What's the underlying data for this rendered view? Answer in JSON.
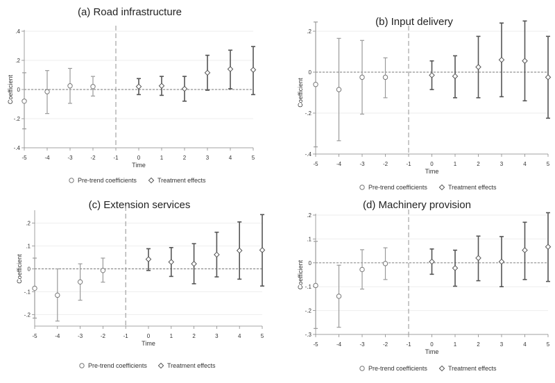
{
  "chart_data": [
    {
      "type": "scatter",
      "title": "(a) Road infrastructure",
      "xlabel": "Time",
      "ylabel": "Coefficient",
      "xlim": [
        -5,
        5
      ],
      "ylim": [
        -0.4,
        0.4
      ],
      "x_ticks": [
        "-5",
        "-4",
        "-3",
        "-2",
        "-1",
        "0",
        "1",
        "2",
        "3",
        "4",
        "5"
      ],
      "y_ticks": [
        -0.4,
        -0.2,
        0,
        0.2,
        0.4
      ],
      "y_tick_labels": [
        "-.4",
        "-.2",
        "0",
        ".2",
        ".4"
      ],
      "event_line_x": -1,
      "zero_line": true,
      "legend_position": "bottom",
      "series": [
        {
          "name": "Pre-trend coefficients",
          "marker": "circle",
          "color": "#9a9a9a",
          "x": [
            -5,
            -4,
            -3,
            -2
          ],
          "y": [
            -0.08,
            -0.015,
            0.025,
            0.02
          ],
          "ci_low": [
            -0.27,
            -0.165,
            -0.095,
            -0.045
          ],
          "ci_high": [
            0.115,
            0.13,
            0.145,
            0.09
          ]
        },
        {
          "name": "Treatment effects",
          "marker": "diamond",
          "color": "#555555",
          "x": [
            0,
            1,
            2,
            3,
            4,
            5
          ],
          "y": [
            0.02,
            0.025,
            0.005,
            0.115,
            0.14,
            0.135
          ],
          "ci_low": [
            -0.035,
            -0.04,
            -0.08,
            -0.005,
            0.005,
            -0.035
          ],
          "ci_high": [
            0.075,
            0.09,
            0.09,
            0.235,
            0.27,
            0.295
          ]
        }
      ]
    },
    {
      "type": "scatter",
      "title": "(b) Input delivery",
      "xlabel": "Time",
      "ylabel": "Coefficient",
      "xlim": [
        -5,
        5
      ],
      "ylim": [
        -0.4,
        0.2
      ],
      "x_ticks": [
        "-5",
        "-4",
        "-3",
        "-2",
        "-1",
        "0",
        "1",
        "2",
        "3",
        "4",
        "5"
      ],
      "y_ticks": [
        -0.4,
        -0.2,
        0,
        0.2
      ],
      "y_tick_labels": [
        "-.4",
        "-.2",
        "0",
        ".2"
      ],
      "event_line_x": -1,
      "zero_line": true,
      "legend_position": "bottom",
      "series": [
        {
          "name": "Pre-trend coefficients",
          "marker": "circle",
          "color": "#9a9a9a",
          "x": [
            -5,
            -4,
            -3,
            -2
          ],
          "y": [
            -0.06,
            -0.085,
            -0.025,
            -0.025
          ],
          "ci_low": [
            -0.365,
            -0.335,
            -0.205,
            -0.125
          ],
          "ci_high": [
            0.245,
            0.165,
            0.155,
            0.07
          ]
        },
        {
          "name": "Treatment effects",
          "marker": "diamond",
          "color": "#555555",
          "x": [
            0,
            1,
            2,
            3,
            4,
            5
          ],
          "y": [
            -0.015,
            -0.02,
            0.025,
            0.06,
            0.055,
            -0.025
          ],
          "ci_low": [
            -0.085,
            -0.125,
            -0.125,
            -0.12,
            -0.14,
            -0.225
          ],
          "ci_high": [
            0.055,
            0.08,
            0.175,
            0.24,
            0.25,
            0.175
          ]
        }
      ]
    },
    {
      "type": "scatter",
      "title": "(c) Extension services",
      "xlabel": "Time",
      "ylabel": "Coefficient",
      "xlim": [
        -5,
        5
      ],
      "ylim": [
        -0.25,
        0.25
      ],
      "x_ticks": [
        "-5",
        "-4",
        "-3",
        "-2",
        "-1",
        "0",
        "1",
        "2",
        "3",
        "4",
        "5"
      ],
      "y_ticks": [
        -0.2,
        -0.1,
        0,
        0.1,
        0.2
      ],
      "y_tick_labels": [
        "-.2",
        "-.1",
        "0",
        ".1",
        ".2"
      ],
      "event_line_x": -1,
      "zero_line": true,
      "legend_position": "bottom",
      "series": [
        {
          "name": "Pre-trend coefficients",
          "marker": "circle",
          "color": "#9a9a9a",
          "x": [
            -5,
            -4,
            -3,
            -2
          ],
          "y": [
            -0.085,
            -0.115,
            -0.057,
            -0.007
          ],
          "ci_low": [
            -0.215,
            -0.228,
            -0.137,
            -0.058
          ],
          "ci_high": [
            0.047,
            0.0,
            0.022,
            0.047
          ]
        },
        {
          "name": "Treatment effects",
          "marker": "diamond",
          "color": "#555555",
          "x": [
            0,
            1,
            2,
            3,
            4,
            5
          ],
          "y": [
            0.042,
            0.03,
            0.022,
            0.062,
            0.08,
            0.082
          ],
          "ci_low": [
            -0.007,
            -0.033,
            -0.065,
            -0.035,
            -0.045,
            -0.075
          ],
          "ci_high": [
            0.088,
            0.093,
            0.11,
            0.16,
            0.205,
            0.237
          ]
        }
      ]
    },
    {
      "type": "scatter",
      "title": "(d) Machinery provision",
      "xlabel": "Time",
      "ylabel": "Coefficient",
      "xlim": [
        -5,
        5
      ],
      "ylim": [
        -0.3,
        0.2
      ],
      "x_ticks": [
        "-5",
        "-4",
        "-3",
        "-2",
        "-1",
        "0",
        "1",
        "2",
        "3",
        "4",
        "5"
      ],
      "y_ticks": [
        -0.3,
        -0.2,
        -0.1,
        0,
        0.1,
        0.2
      ],
      "y_tick_labels": [
        "-.3",
        "-.2",
        "-.1",
        "0",
        ".1",
        ".2"
      ],
      "event_line_x": -1,
      "zero_line": true,
      "legend_position": "bottom",
      "series": [
        {
          "name": "Pre-trend coefficients",
          "marker": "circle",
          "color": "#9a9a9a",
          "x": [
            -5,
            -4,
            -3,
            -2
          ],
          "y": [
            -0.095,
            -0.14,
            -0.028,
            -0.003
          ],
          "ci_low": [
            -0.275,
            -0.27,
            -0.11,
            -0.07
          ],
          "ci_high": [
            0.09,
            -0.01,
            0.055,
            0.063
          ]
        },
        {
          "name": "Treatment effects",
          "marker": "diamond",
          "color": "#555555",
          "x": [
            0,
            1,
            2,
            3,
            4,
            5
          ],
          "y": [
            0.005,
            -0.022,
            0.02,
            0.005,
            0.053,
            0.067
          ],
          "ci_low": [
            -0.048,
            -0.098,
            -0.075,
            -0.1,
            -0.07,
            -0.078
          ],
          "ci_high": [
            0.058,
            0.053,
            0.112,
            0.11,
            0.17,
            0.21
          ]
        }
      ]
    }
  ]
}
